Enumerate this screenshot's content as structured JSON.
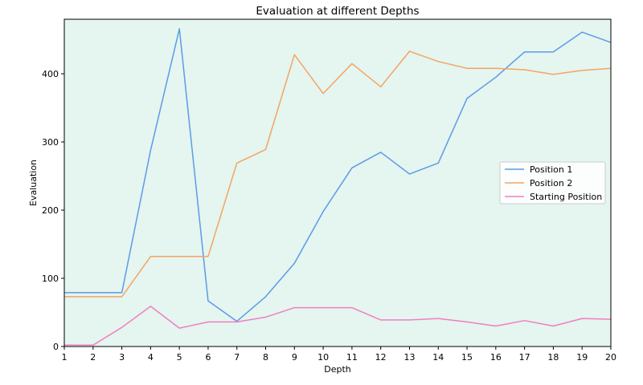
{
  "chart_data": {
    "type": "line",
    "title": "Evaluation at different Depths",
    "xlabel": "Depth",
    "ylabel": "Evaluation",
    "x": [
      1,
      2,
      3,
      4,
      5,
      6,
      7,
      8,
      9,
      10,
      11,
      12,
      13,
      14,
      15,
      16,
      17,
      18,
      19,
      20
    ],
    "xlim": [
      1,
      20
    ],
    "ylim": [
      0,
      480
    ],
    "yticks": [
      0,
      100,
      200,
      300,
      400
    ],
    "grid": false,
    "legend_position": "center-right",
    "background_color": "#e5f5ef",
    "series": [
      {
        "name": "Position 1",
        "color": "#5b9bea",
        "values": [
          79,
          79,
          79,
          288,
          466,
          67,
          37,
          73,
          122,
          198,
          262,
          285,
          253,
          269,
          364,
          395,
          432,
          432,
          461,
          446
        ]
      },
      {
        "name": "Position 2",
        "color": "#f4a464",
        "values": [
          73,
          73,
          73,
          132,
          132,
          132,
          269,
          289,
          428,
          371,
          415,
          381,
          433,
          418,
          408,
          408,
          406,
          399,
          405,
          408
        ]
      },
      {
        "name": "Starting Position",
        "color": "#f07ec2",
        "values": [
          2,
          2,
          28,
          59,
          27,
          36,
          36,
          43,
          57,
          57,
          57,
          39,
          39,
          41,
          36,
          30,
          38,
          30,
          41,
          40
        ]
      }
    ]
  }
}
